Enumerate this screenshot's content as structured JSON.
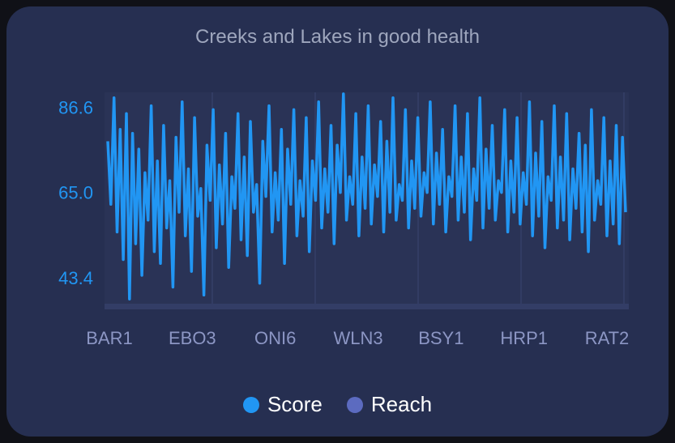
{
  "chart_data": {
    "type": "line",
    "title": "Creeks and Lakes in good health",
    "xlabel": "",
    "ylabel": "",
    "x_tick_labels": [
      "BAR1",
      "EBO3",
      "ONI6",
      "WLN3",
      "BSY1",
      "HRP1",
      "RAT2"
    ],
    "y_tick_labels": [
      "86.6",
      "65.0",
      "43.4"
    ],
    "y_ticks": [
      86.6,
      65.0,
      43.4
    ],
    "ylim": [
      36.8,
      90.4
    ],
    "grid": true,
    "legend_position": "bottom",
    "series": [
      {
        "name": "Score",
        "color": "#2196f3",
        "sampled": true,
        "values": [
          78,
          62,
          89,
          55,
          81,
          48,
          85,
          38,
          80,
          52,
          76,
          44,
          70,
          58,
          87,
          50,
          73,
          47,
          82,
          56,
          68,
          41,
          79,
          60,
          88,
          54,
          71,
          45,
          84,
          59,
          66,
          39,
          77,
          63,
          86,
          51,
          72,
          57,
          80,
          46,
          69,
          61,
          85,
          53,
          74,
          49,
          83,
          60,
          67,
          42,
          78,
          64,
          87,
          55,
          70,
          58,
          81,
          47,
          76,
          62,
          86,
          54,
          68,
          59,
          84,
          50,
          73,
          63,
          88,
          56,
          71,
          60,
          82,
          52,
          77,
          65,
          90,
          58,
          69,
          62,
          85,
          54,
          74,
          61,
          87,
          57,
          72,
          64,
          83,
          55,
          78,
          60,
          89,
          58,
          67,
          63,
          86,
          56,
          73,
          61,
          84,
          59,
          70,
          65,
          88,
          57,
          75,
          62,
          81,
          55,
          69,
          64,
          87,
          58,
          74,
          60,
          85,
          53,
          71,
          63,
          89,
          56,
          76,
          61,
          82,
          58,
          68,
          65,
          86,
          55,
          73,
          60,
          84,
          57,
          70,
          62,
          88,
          54,
          75,
          59,
          83,
          51,
          69,
          63,
          87,
          56,
          74,
          58,
          85,
          53,
          71,
          61,
          80,
          55,
          77,
          50,
          86,
          58,
          68,
          62,
          84,
          54,
          73,
          57,
          82,
          52,
          79,
          60
        ]
      },
      {
        "name": "Reach",
        "color": "#5c6bc0",
        "values": []
      }
    ]
  },
  "legend": {
    "items": [
      {
        "label": "Score",
        "color": "#2196f3"
      },
      {
        "label": "Reach",
        "color": "#5c6bc0"
      }
    ]
  }
}
